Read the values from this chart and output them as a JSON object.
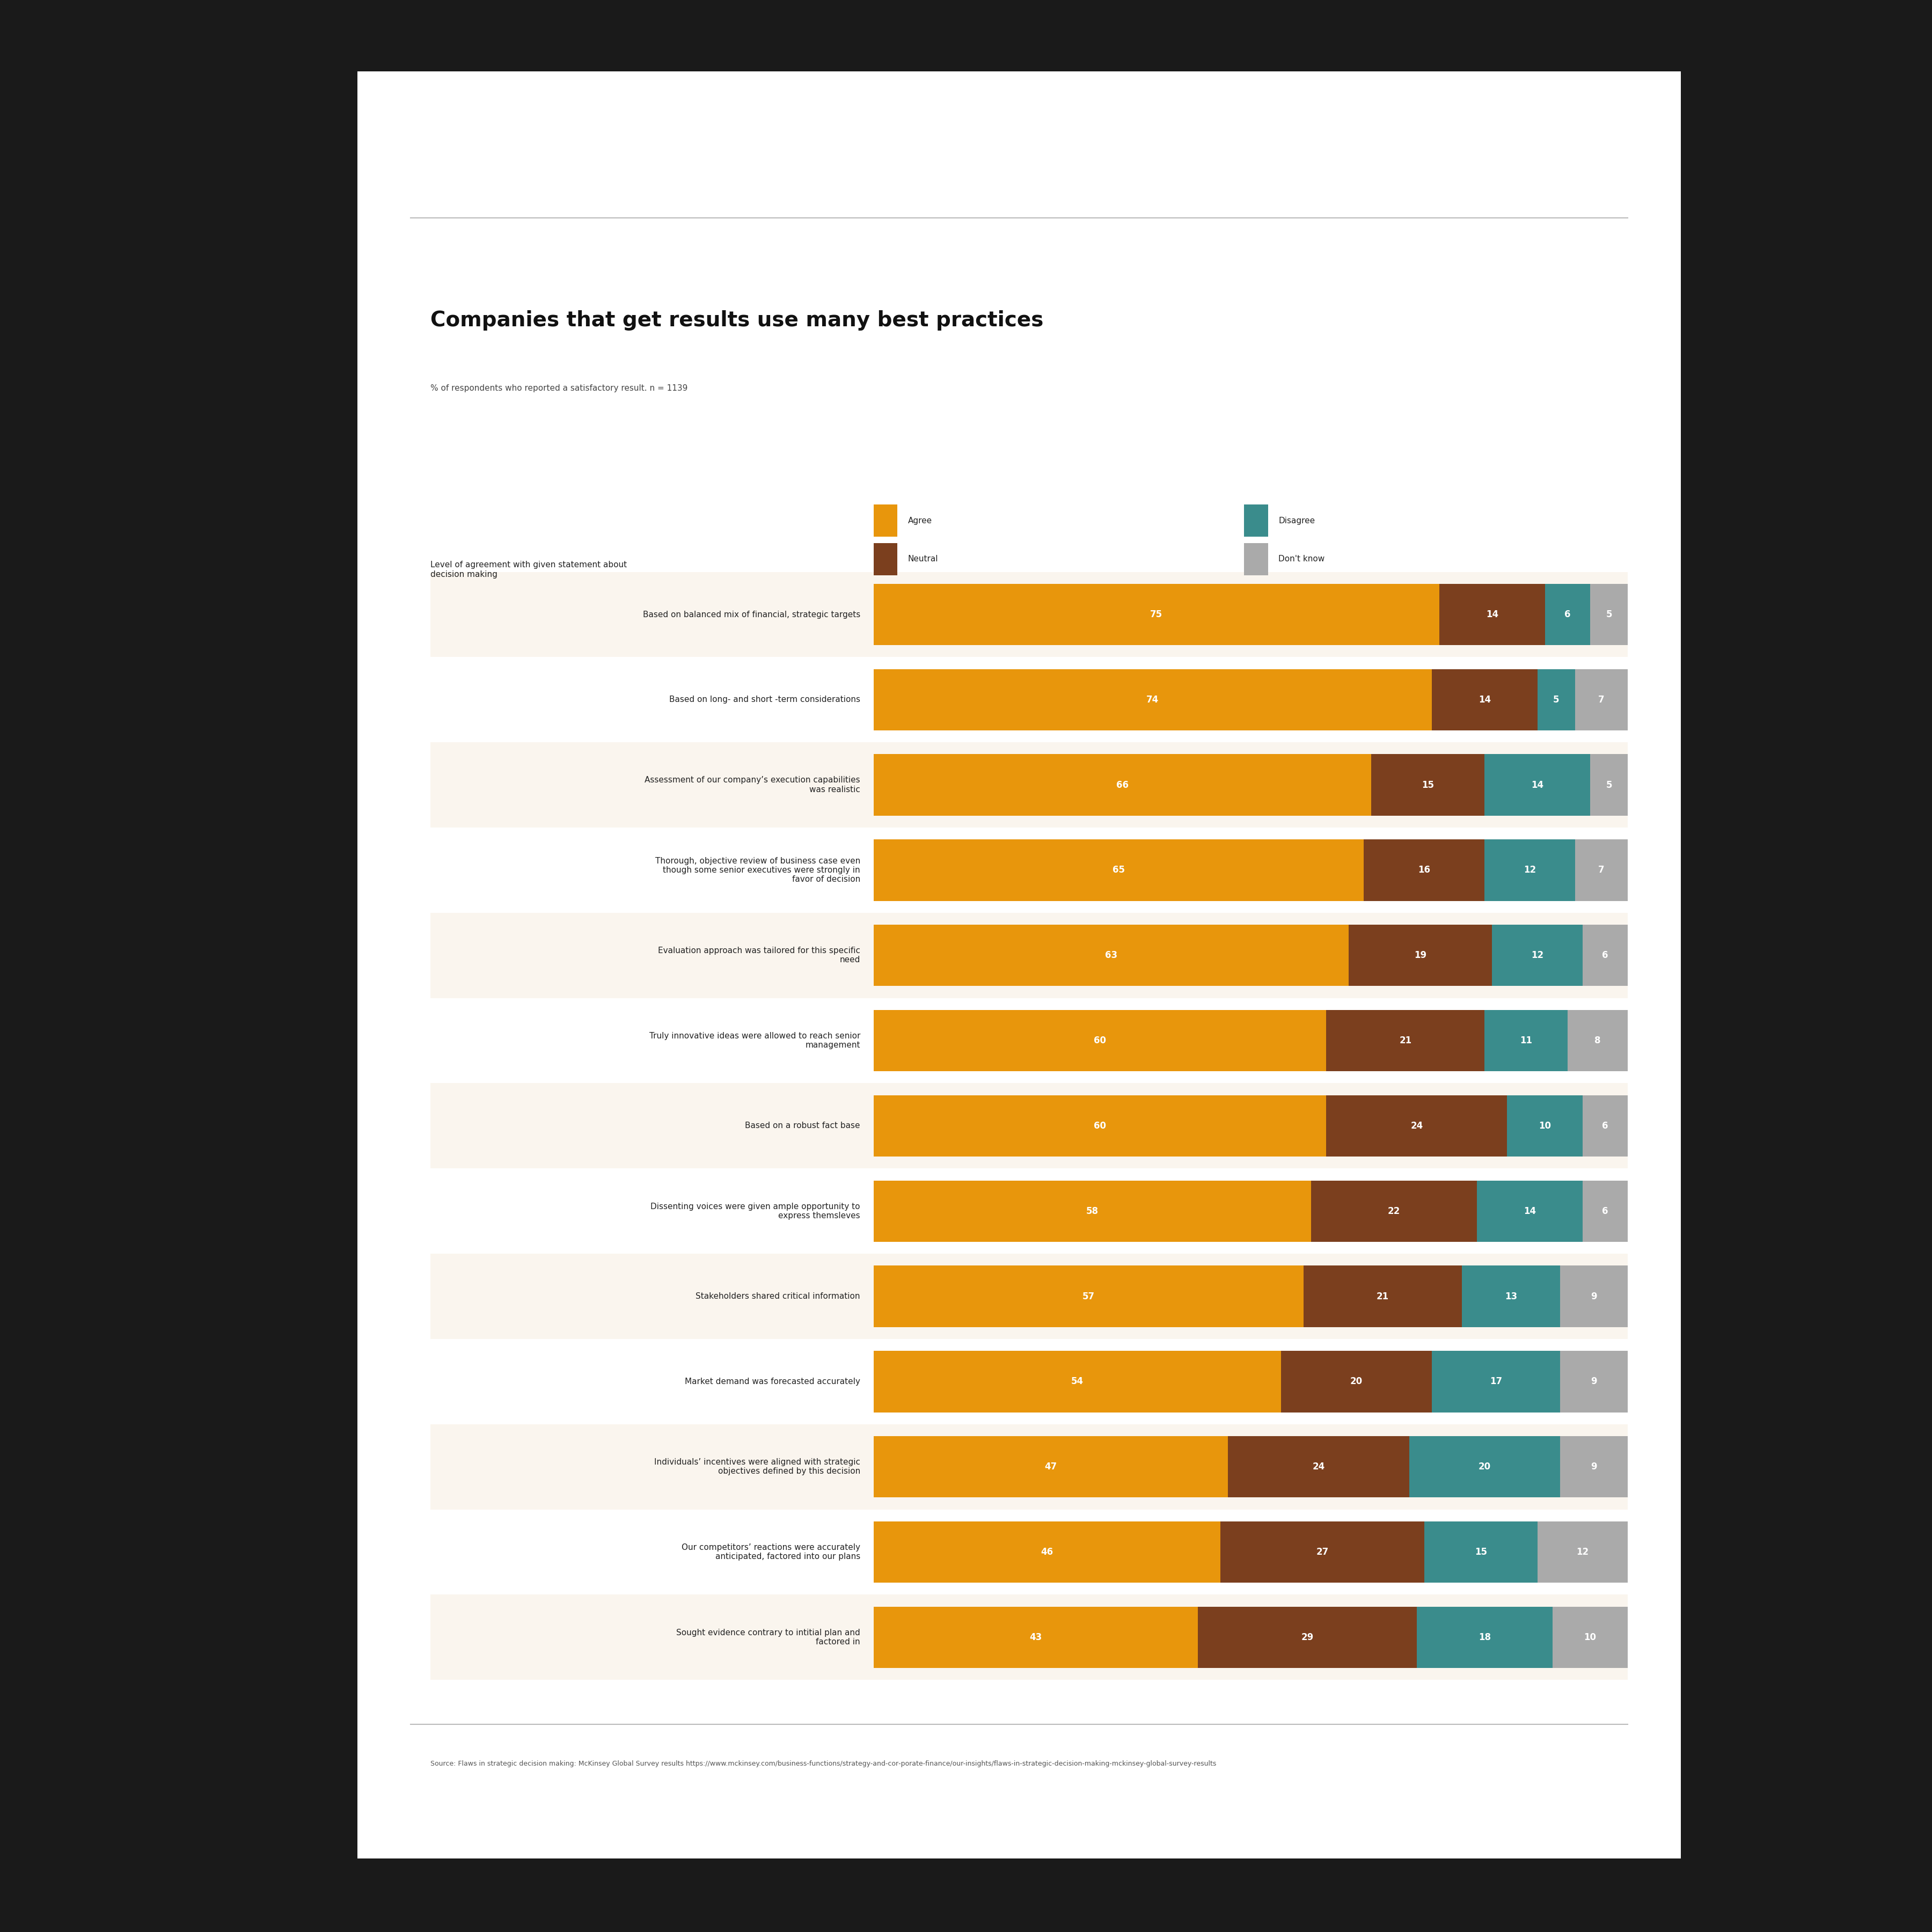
{
  "title": "Companies that get results use many best practices",
  "subtitle": "% of respondents who reported a satisfactory result. n = 1139",
  "source": "Source: Flaws in strategic decision making: McKinsey Global Survey results https://www.mckinsey.com/business-functions/strategy-and-cor­porate-finance/our-insights/flaws-in-strategic-decision-making-mckinsey-global-survey-results",
  "legend_label_text": "Level of agreement with given statement about\ndecision making",
  "categories": [
    "Based on balanced mix of financial, strategic targets",
    "Based on long- and short -term considerations",
    "Assessment of our company’s execution capabilities\nwas realistic",
    "Thorough, objective review of business case even\nthough some senior executives were strongly in\nfavor of decision",
    "Evaluation approach was tailored for this specific\nneed",
    "Truly innovative ideas were allowed to reach senior\nmanagement",
    "Based on a robust fact base",
    "Dissenting voices were given ample opportunity to\nexpress themsleves",
    "Stakeholders shared critical information",
    "Market demand was forecasted accurately",
    "Individuals’ incentives were aligned with strategic\nobjectives defined by this decision",
    "Our competitors’ reactions were accurately\nanticipated, factored into our plans",
    "Sought evidence contrary to intitial plan and\nfactored in"
  ],
  "agree": [
    75,
    74,
    66,
    65,
    63,
    60,
    60,
    58,
    57,
    54,
    47,
    46,
    43
  ],
  "neutral": [
    14,
    14,
    15,
    16,
    19,
    21,
    24,
    22,
    21,
    20,
    24,
    27,
    29
  ],
  "disagree": [
    6,
    5,
    14,
    12,
    12,
    11,
    10,
    14,
    13,
    17,
    20,
    15,
    18
  ],
  "dontknow": [
    5,
    7,
    5,
    7,
    6,
    8,
    6,
    6,
    9,
    9,
    9,
    12,
    10
  ],
  "colors": {
    "agree": "#E8960C",
    "neutral": "#7B3F1E",
    "disagree": "#3A8C8C",
    "dontknow": "#AAAAAA"
  },
  "row_colors": [
    "#FAF5EE",
    "#FFFFFF"
  ],
  "background_outer": "#1A1A1A",
  "paper_color": "#FFFFFF",
  "sep_color": "#BBBBBB",
  "title_fontsize": 28,
  "subtitle_fontsize": 11,
  "label_fontsize": 11,
  "value_fontsize": 12,
  "legend_fontsize": 11,
  "source_fontsize": 9
}
